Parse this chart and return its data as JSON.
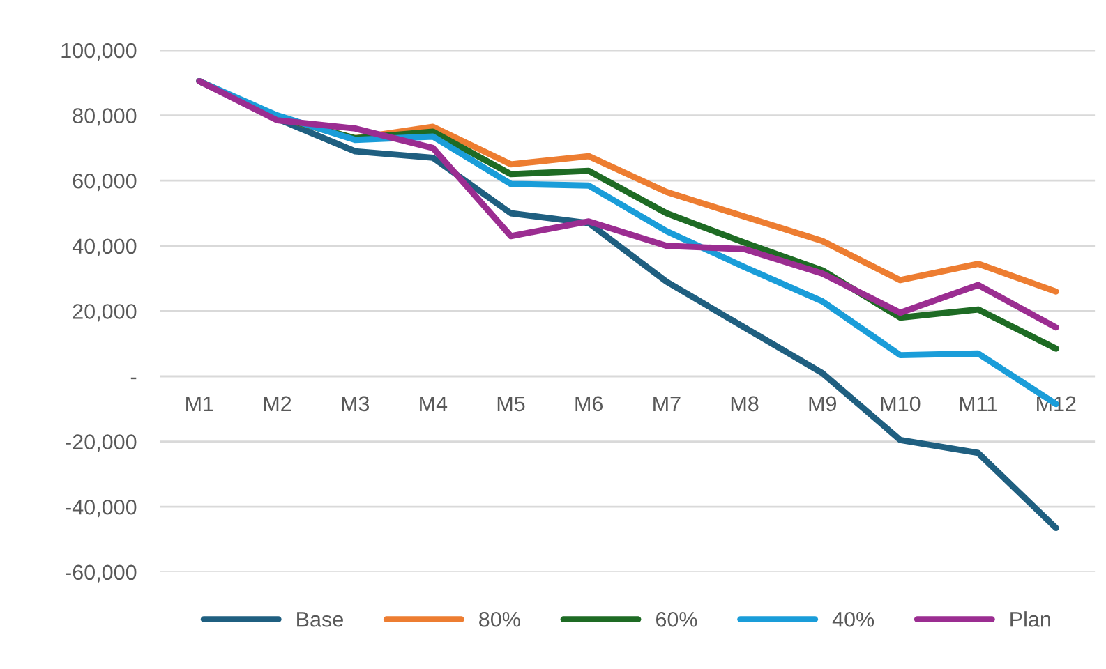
{
  "chart_data": {
    "type": "line",
    "categories": [
      "M1",
      "M2",
      "M3",
      "M4",
      "M5",
      "M6",
      "M7",
      "M8",
      "M9",
      "M10",
      "M11",
      "M12"
    ],
    "series": [
      {
        "name": "Base",
        "color": "#1f5f80",
        "values": [
          90500,
          79000,
          69000,
          67000,
          50000,
          47000,
          29000,
          15000,
          1000,
          -19500,
          -23500,
          -46500
        ]
      },
      {
        "name": "80%",
        "color": "#ed7d31",
        "values": [
          90500,
          79500,
          73000,
          76500,
          65000,
          67500,
          56500,
          49000,
          41500,
          29500,
          34500,
          26000
        ]
      },
      {
        "name": "60%",
        "color": "#1e6b24",
        "values": [
          90500,
          79500,
          73000,
          75000,
          62000,
          63000,
          50000,
          41000,
          32500,
          18000,
          20500,
          8500
        ]
      },
      {
        "name": "40%",
        "color": "#1a9dd9",
        "values": [
          90500,
          80000,
          72500,
          73500,
          59000,
          58500,
          44500,
          33500,
          23000,
          6500,
          7000,
          -8500
        ]
      },
      {
        "name": "Plan",
        "color": "#9b2d91",
        "values": [
          90500,
          78500,
          76000,
          70000,
          43000,
          47500,
          40000,
          39000,
          31500,
          19500,
          28000,
          15000
        ]
      }
    ],
    "ylim": [
      -60000,
      100000
    ],
    "yticks": [
      {
        "value": -60000,
        "label": "-60,000"
      },
      {
        "value": -40000,
        "label": "-40,000"
      },
      {
        "value": -20000,
        "label": "-20,000"
      },
      {
        "value": 0,
        "label": "-"
      },
      {
        "value": 20000,
        "label": "20,000"
      },
      {
        "value": 40000,
        "label": "40,000"
      },
      {
        "value": 60000,
        "label": "60,000"
      },
      {
        "value": 80000,
        "label": "80,000"
      },
      {
        "value": 100000,
        "label": "100,000"
      }
    ],
    "grid": "y",
    "legend": "bottom",
    "marker": "none",
    "line_style": "solid"
  }
}
